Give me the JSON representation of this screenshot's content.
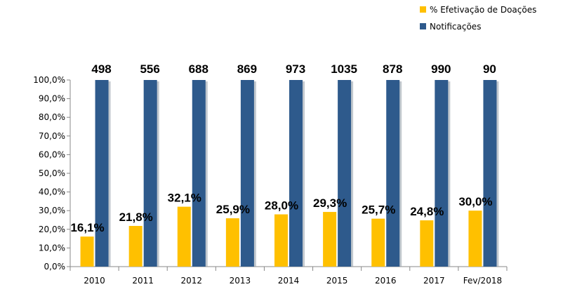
{
  "chart_data": {
    "type": "bar",
    "categories": [
      "2010",
      "2011",
      "2012",
      "2013",
      "2014",
      "2015",
      "2016",
      "2017",
      "Fev/2018"
    ],
    "series": [
      {
        "name": "% Efetivação de Doações",
        "color": "#FFC000",
        "values": [
          16.1,
          21.8,
          32.1,
          25.9,
          28.0,
          29.3,
          25.7,
          24.8,
          30.0
        ],
        "labels": [
          "16,1%",
          "21,8%",
          "32,1%",
          "25,9%",
          "28,0%",
          "29,3%",
          "25,7%",
          "24,8%",
          "30,0%"
        ]
      },
      {
        "name": "Notificações",
        "color": "#2E5A8C",
        "values": [
          100,
          100,
          100,
          100,
          100,
          100,
          100,
          100,
          100
        ],
        "labels": [
          "498",
          "556",
          "688",
          "869",
          "973",
          "1035",
          "878",
          "990",
          "90"
        ]
      }
    ],
    "ylim": [
      0,
      100
    ],
    "yticks": [
      "0,0%",
      "10,0%",
      "20,0%",
      "30,0%",
      "40,0%",
      "50,0%",
      "60,0%",
      "70,0%",
      "80,0%",
      "90,0%",
      "100,0%"
    ],
    "legend": "top-right",
    "grid": false
  }
}
